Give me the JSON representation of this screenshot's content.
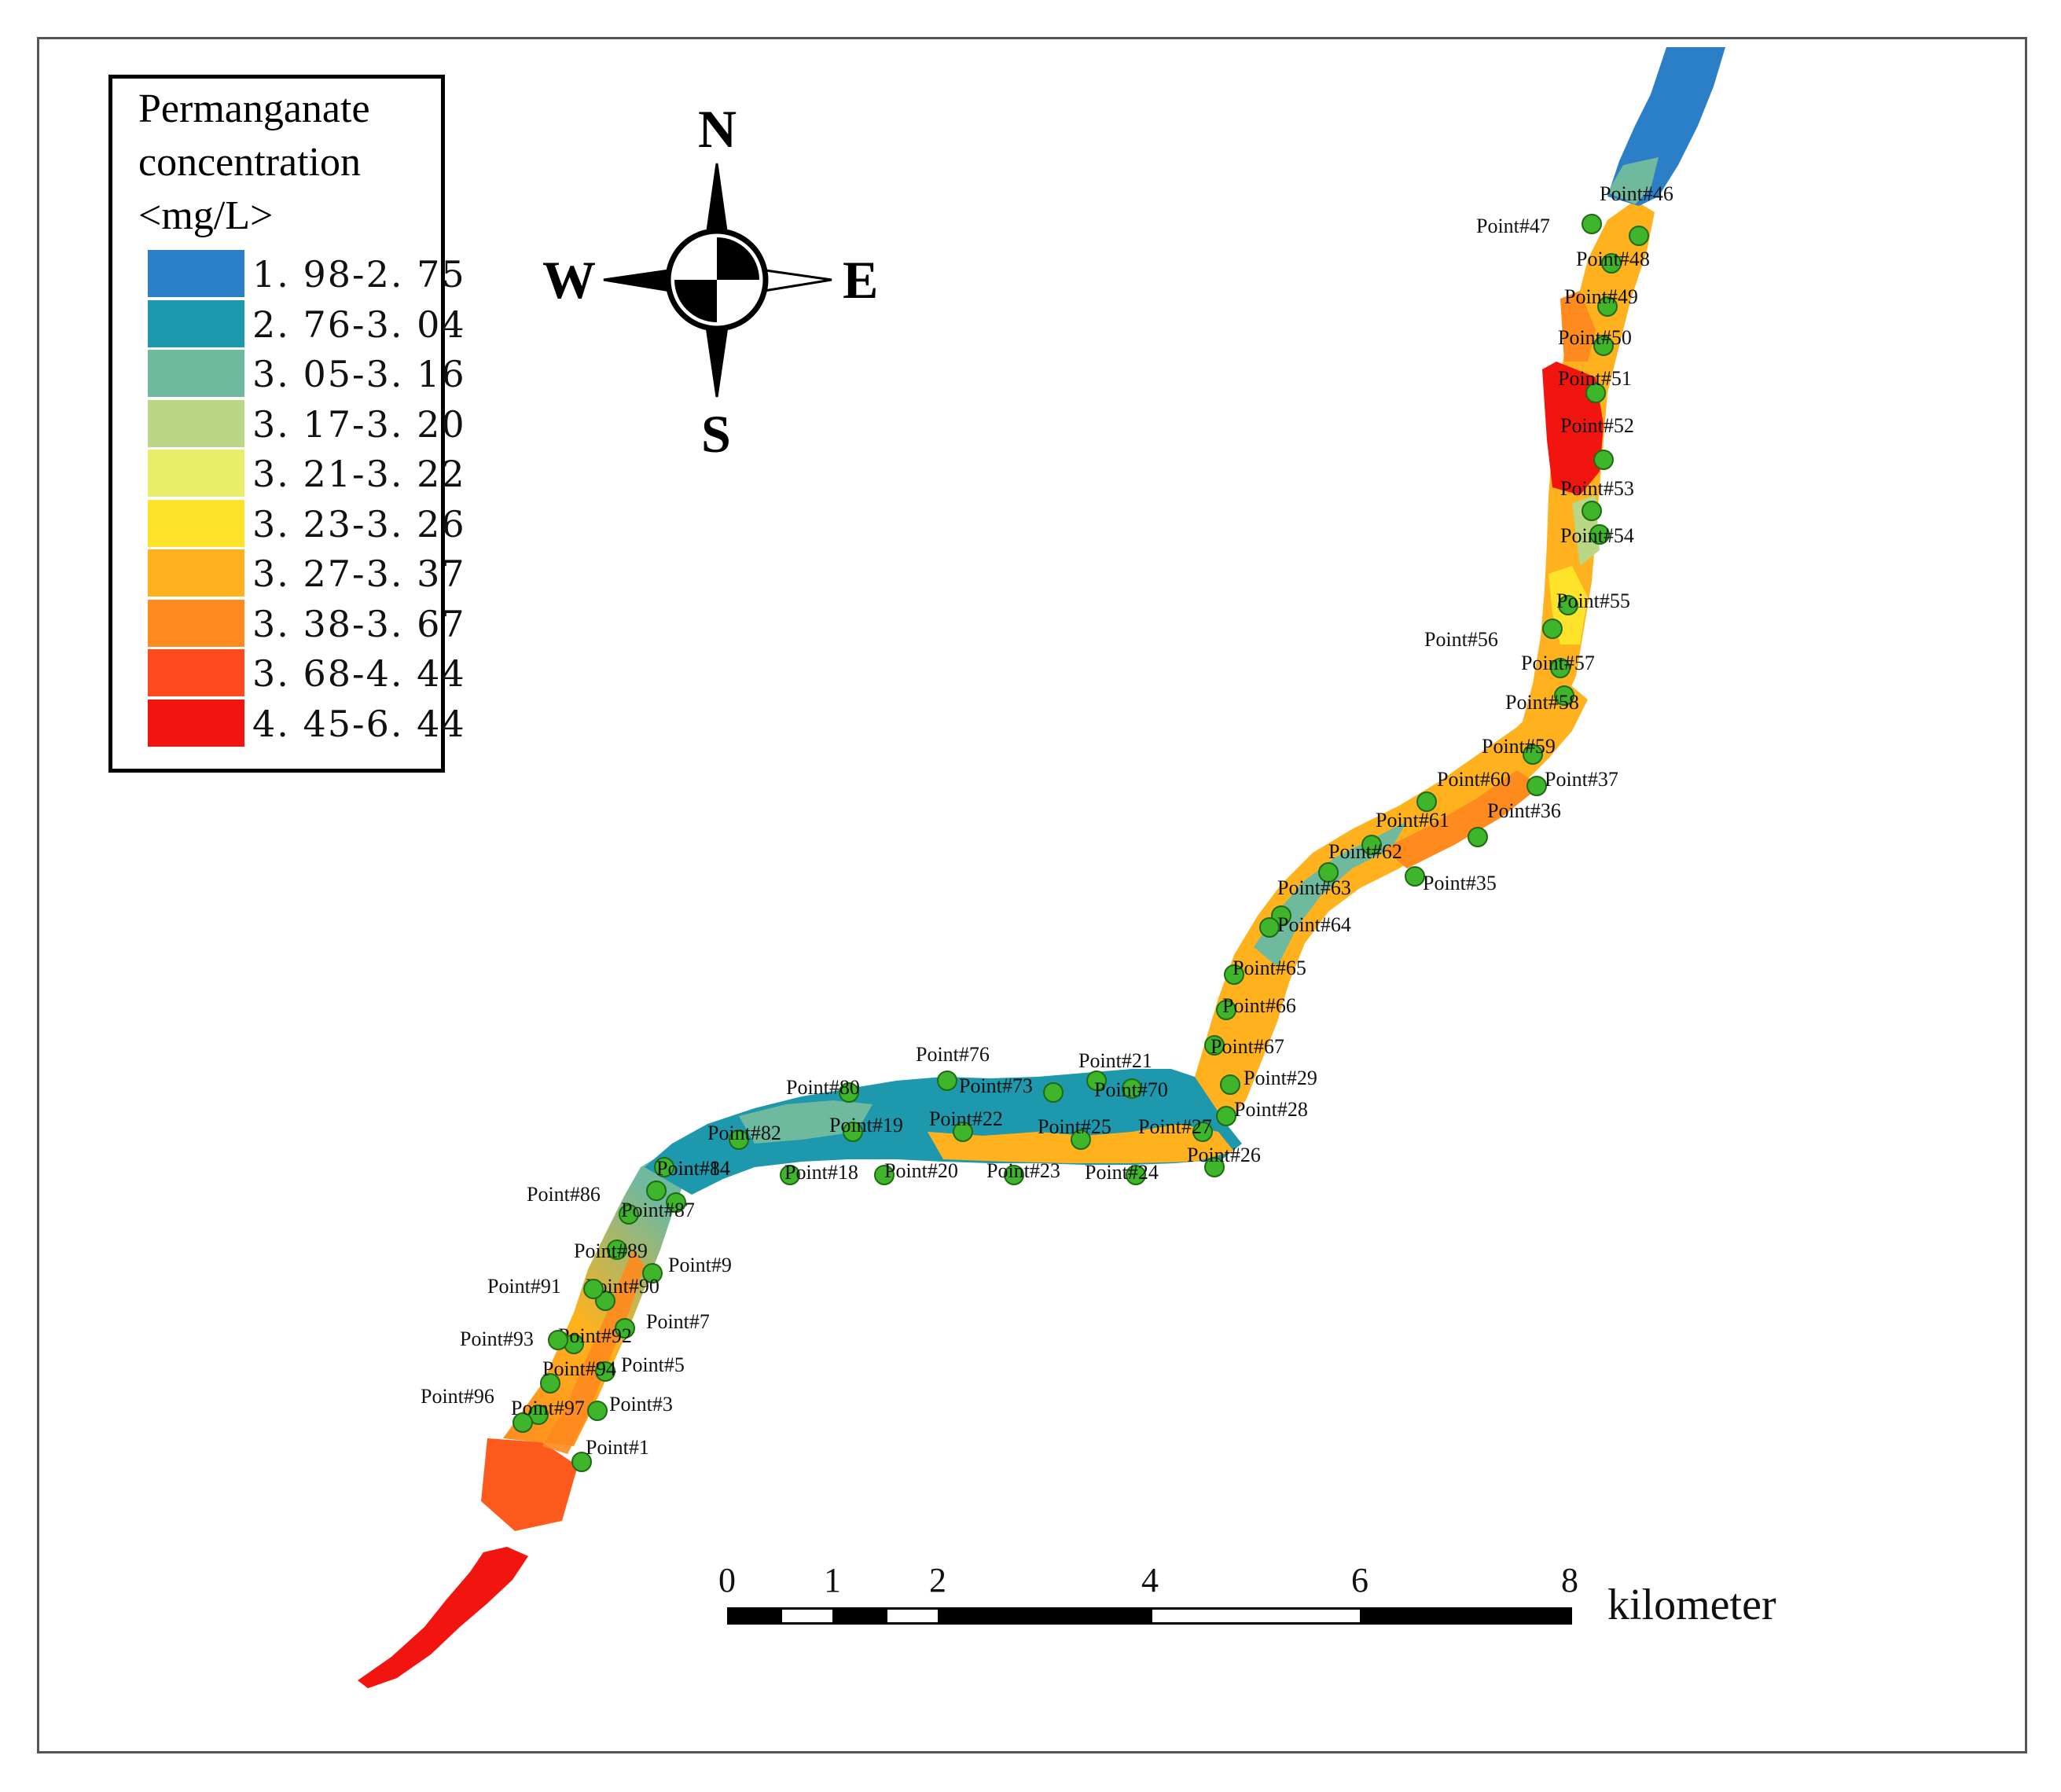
{
  "legend": {
    "title_lines": [
      "Permanganate",
      "concentration",
      "<mg/L>"
    ],
    "classes": [
      {
        "label": "1. 98-2. 75",
        "color": "#2a7fc6"
      },
      {
        "label": "2. 76-3. 04",
        "color": "#1e98ad"
      },
      {
        "label": "3. 05-3. 16",
        "color": "#6fb99e"
      },
      {
        "label": "3. 17-3. 20",
        "color": "#b9d785"
      },
      {
        "label": "3. 21-3. 22",
        "color": "#e6ee6a"
      },
      {
        "label": "3. 23-3. 26",
        "color": "#ffe22a"
      },
      {
        "label": "3. 27-3. 37",
        "color": "#ffb21e"
      },
      {
        "label": "3. 38-3. 67",
        "color": "#ff8a1e"
      },
      {
        "label": "3. 68-4. 44",
        "color": "#ff4a1e"
      },
      {
        "label": "4. 45-6. 44",
        "color": "#f2140e"
      }
    ]
  },
  "compass": {
    "n": "N",
    "s": "S",
    "e": "E",
    "w": "W"
  },
  "scale_bar": {
    "ticks": [
      "0",
      "1",
      "2",
      "4",
      "6",
      "8"
    ],
    "unit": "kilometer"
  },
  "points": [
    {
      "label": "Point#1"
    },
    {
      "label": "Point#3"
    },
    {
      "label": "Point#5"
    },
    {
      "label": "Point#7"
    },
    {
      "label": "Point#9"
    },
    {
      "label": "Point#14"
    },
    {
      "label": "Point#18"
    },
    {
      "label": "Point#19"
    },
    {
      "label": "Point#20"
    },
    {
      "label": "Point#21"
    },
    {
      "label": "Point#22"
    },
    {
      "label": "Point#23"
    },
    {
      "label": "Point#24"
    },
    {
      "label": "Point#25"
    },
    {
      "label": "Point#26"
    },
    {
      "label": "Point#27"
    },
    {
      "label": "Point#28"
    },
    {
      "label": "Point#29"
    },
    {
      "label": "Point#35"
    },
    {
      "label": "Point#36"
    },
    {
      "label": "Point#37"
    },
    {
      "label": "Point#46"
    },
    {
      "label": "Point#47"
    },
    {
      "label": "Point#48"
    },
    {
      "label": "Point#49"
    },
    {
      "label": "Point#50"
    },
    {
      "label": "Point#51"
    },
    {
      "label": "Point#52"
    },
    {
      "label": "Point#53"
    },
    {
      "label": "Point#54"
    },
    {
      "label": "Point#55"
    },
    {
      "label": "Point#56"
    },
    {
      "label": "Point#57"
    },
    {
      "label": "Point#58"
    },
    {
      "label": "Point#59"
    },
    {
      "label": "Point#60"
    },
    {
      "label": "Point#61"
    },
    {
      "label": "Point#62"
    },
    {
      "label": "Point#63"
    },
    {
      "label": "Point#64"
    },
    {
      "label": "Point#65"
    },
    {
      "label": "Point#66"
    },
    {
      "label": "Point#67"
    },
    {
      "label": "Point#70"
    },
    {
      "label": "Point#73"
    },
    {
      "label": "Point#76"
    },
    {
      "label": "Point#80"
    },
    {
      "label": "Point#82"
    },
    {
      "label": "Point#84"
    },
    {
      "label": "Point#86"
    },
    {
      "label": "Point#87"
    },
    {
      "label": "Point#89"
    },
    {
      "label": "Point#90"
    },
    {
      "label": "Point#91"
    },
    {
      "label": "Point#92"
    },
    {
      "label": "Point#93"
    },
    {
      "label": "Point#94"
    },
    {
      "label": "Point#96"
    },
    {
      "label": "Point#97"
    }
  ]
}
